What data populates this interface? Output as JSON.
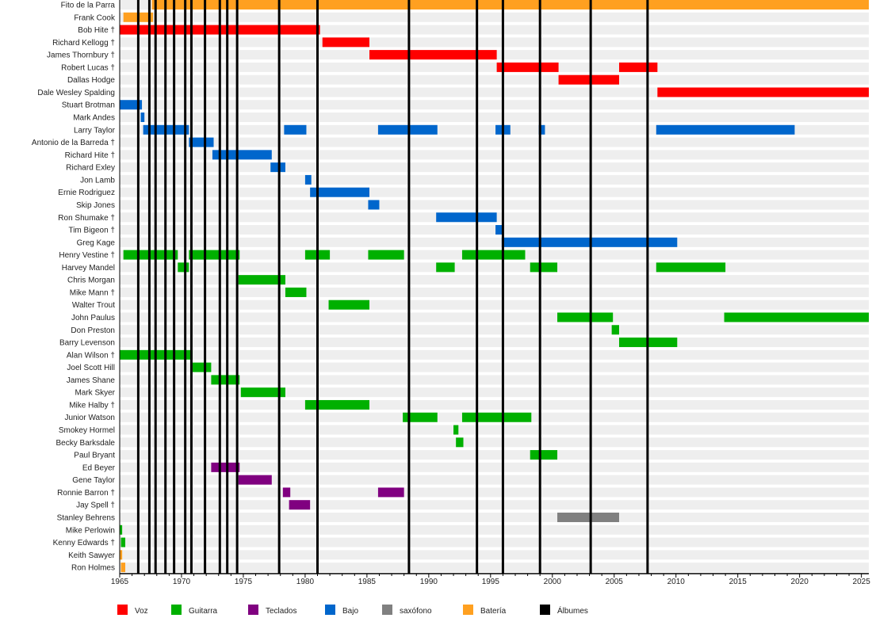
{
  "chart_data": {
    "type": "timeline",
    "title": "",
    "xlim": [
      1965,
      2025.6
    ],
    "x_ticks": [
      1965,
      1970,
      1975,
      1980,
      1985,
      1990,
      1995,
      2000,
      2005,
      2010,
      2015,
      2020,
      2025
    ],
    "roles": [
      {
        "key": "voz",
        "label": "Voz",
        "color": "#ff0000"
      },
      {
        "key": "guitarra",
        "label": "Guitarra",
        "color": "#00b000"
      },
      {
        "key": "teclados",
        "label": "Teclados",
        "color": "#800080"
      },
      {
        "key": "bajo",
        "label": "Bajo",
        "color": "#0066cc"
      },
      {
        "key": "saxofono",
        "label": "saxófono",
        "color": "#808080"
      },
      {
        "key": "bateria",
        "label": "Batería",
        "color": "#ffa020"
      },
      {
        "key": "albumes",
        "label": "Álbumes",
        "color": "#000000"
      }
    ],
    "albums": [
      1966.5,
      1967.4,
      1967.9,
      1968.7,
      1969.4,
      1970.3,
      1970.8,
      1971.9,
      1973.1,
      1973.7,
      1974.5,
      1977.9,
      1981.0,
      1988.4,
      1993.9,
      1996.0,
      1999.0,
      2003.1,
      2007.7
    ],
    "members": [
      {
        "name": "Fito de la Parra",
        "spans": [
          [
            "bateria",
            1967.6,
            2025.6
          ]
        ]
      },
      {
        "name": "Frank Cook",
        "spans": [
          [
            "bateria",
            1965.3,
            1967.7
          ]
        ]
      },
      {
        "name": "Bob Hite †",
        "spans": [
          [
            "voz",
            1965,
            1981.2
          ]
        ]
      },
      {
        "name": "Richard Kellogg †",
        "spans": [
          [
            "voz",
            1981.4,
            1985.2
          ]
        ]
      },
      {
        "name": "James Thornbury †",
        "spans": [
          [
            "voz",
            1985.2,
            1995.5
          ]
        ]
      },
      {
        "name": "Robert Lucas †",
        "spans": [
          [
            "voz",
            1995.5,
            2000.5
          ],
          [
            "voz",
            2005.4,
            2008.5
          ]
        ]
      },
      {
        "name": "Dallas Hodge",
        "spans": [
          [
            "voz",
            2000.5,
            2005.4
          ]
        ]
      },
      {
        "name": "Dale Wesley Spalding",
        "spans": [
          [
            "voz",
            2008.5,
            2025.6
          ]
        ]
      },
      {
        "name": "Stuart Brotman",
        "spans": [
          [
            "bajo",
            1965,
            1966.8
          ]
        ]
      },
      {
        "name": "Mark Andes",
        "spans": [
          [
            "bajo",
            1966.7,
            1967.0
          ]
        ]
      },
      {
        "name": "Larry Taylor",
        "spans": [
          [
            "bajo",
            1966.9,
            1970.6
          ],
          [
            "bajo",
            1978.3,
            1980.1
          ],
          [
            "bajo",
            1985.9,
            1990.7
          ],
          [
            "bajo",
            1995.4,
            1996.6
          ],
          [
            "bajo",
            1998.9,
            1999.4
          ],
          [
            "bajo",
            2008.4,
            2019.6
          ]
        ]
      },
      {
        "name": "Antonio de la Barreda †",
        "spans": [
          [
            "bajo",
            1970.6,
            1972.6
          ]
        ]
      },
      {
        "name": "Richard Hite †",
        "spans": [
          [
            "bajo",
            1972.5,
            1977.3
          ]
        ]
      },
      {
        "name": "Richard Exley",
        "spans": [
          [
            "bajo",
            1977.2,
            1978.4
          ]
        ]
      },
      {
        "name": "Jon Lamb",
        "spans": [
          [
            "bajo",
            1980.0,
            1980.5
          ]
        ]
      },
      {
        "name": "Ernie Rodriguez",
        "spans": [
          [
            "bajo",
            1980.4,
            1985.2
          ]
        ]
      },
      {
        "name": "Skip Jones",
        "spans": [
          [
            "bajo",
            1985.1,
            1986.0
          ]
        ]
      },
      {
        "name": "Ron Shumake †",
        "spans": [
          [
            "bajo",
            1990.6,
            1995.5
          ]
        ]
      },
      {
        "name": "Tim Bigeon †",
        "spans": [
          [
            "bajo",
            1995.4,
            1996.0
          ]
        ]
      },
      {
        "name": "Greg Kage",
        "spans": [
          [
            "bajo",
            1995.9,
            2010.1
          ]
        ]
      },
      {
        "name": "Henry Vestine †",
        "spans": [
          [
            "guitarra",
            1965.3,
            1969.7
          ],
          [
            "guitarra",
            1970.6,
            1974.7
          ],
          [
            "guitarra",
            1980.0,
            1982.0
          ],
          [
            "guitarra",
            1985.1,
            1988.0
          ],
          [
            "guitarra",
            1992.7,
            1997.8
          ]
        ]
      },
      {
        "name": "Harvey Mandel",
        "spans": [
          [
            "guitarra",
            1969.7,
            1970.6
          ],
          [
            "guitarra",
            1990.6,
            1992.1
          ],
          [
            "guitarra",
            1998.2,
            2000.4
          ],
          [
            "guitarra",
            2008.4,
            2014.0
          ]
        ]
      },
      {
        "name": "Chris Morgan",
        "spans": [
          [
            "guitarra",
            1974.6,
            1978.4
          ]
        ]
      },
      {
        "name": "Mike Mann †",
        "spans": [
          [
            "guitarra",
            1978.4,
            1980.1
          ]
        ]
      },
      {
        "name": "Walter Trout",
        "spans": [
          [
            "guitarra",
            1981.9,
            1985.2
          ]
        ]
      },
      {
        "name": "John Paulus",
        "spans": [
          [
            "guitarra",
            2000.4,
            2004.9
          ],
          [
            "guitarra",
            2013.9,
            2025.6
          ]
        ]
      },
      {
        "name": "Don Preston",
        "spans": [
          [
            "guitarra",
            2004.8,
            2005.4
          ]
        ]
      },
      {
        "name": "Barry Levenson",
        "spans": [
          [
            "guitarra",
            2005.4,
            2010.1
          ]
        ]
      },
      {
        "name": "Alan Wilson †",
        "spans": [
          [
            "guitarra",
            1965,
            1970.9
          ]
        ]
      },
      {
        "name": "Joel Scott Hill",
        "spans": [
          [
            "guitarra",
            1970.9,
            1972.4
          ]
        ]
      },
      {
        "name": "James Shane",
        "spans": [
          [
            "guitarra",
            1972.4,
            1974.7
          ]
        ]
      },
      {
        "name": "Mark Skyer",
        "spans": [
          [
            "guitarra",
            1974.8,
            1978.4
          ]
        ]
      },
      {
        "name": "Mike Halby †",
        "spans": [
          [
            "guitarra",
            1980.0,
            1985.2
          ]
        ]
      },
      {
        "name": "Junior Watson",
        "spans": [
          [
            "guitarra",
            1987.9,
            1990.7
          ],
          [
            "guitarra",
            1992.7,
            1998.3
          ]
        ]
      },
      {
        "name": "Smokey Hormel",
        "spans": [
          [
            "guitarra",
            1992.0,
            1992.4
          ]
        ]
      },
      {
        "name": "Becky Barksdale",
        "spans": [
          [
            "guitarra",
            1992.2,
            1992.8
          ]
        ]
      },
      {
        "name": "Paul Bryant",
        "spans": [
          [
            "guitarra",
            1998.2,
            2000.4
          ]
        ]
      },
      {
        "name": "Ed Beyer",
        "spans": [
          [
            "teclados",
            1972.4,
            1974.7
          ]
        ]
      },
      {
        "name": "Gene Taylor",
        "spans": [
          [
            "teclados",
            1974.6,
            1977.3
          ]
        ]
      },
      {
        "name": "Ronnie Barron †",
        "spans": [
          [
            "teclados",
            1978.2,
            1978.8
          ],
          [
            "teclados",
            1985.9,
            1988.0
          ]
        ]
      },
      {
        "name": "Jay Spell †",
        "spans": [
          [
            "teclados",
            1978.7,
            1980.4
          ]
        ]
      },
      {
        "name": "Stanley Behrens",
        "spans": [
          [
            "saxofono",
            2000.4,
            2005.4
          ]
        ]
      },
      {
        "name": "Mike Perlowin",
        "spans": [
          [
            "guitarra",
            1965,
            1965.2
          ]
        ]
      },
      {
        "name": "Kenny Edwards †",
        "spans": [
          [
            "guitarra",
            1965.1,
            1965.45
          ]
        ]
      },
      {
        "name": "Keith Sawyer",
        "spans": [
          [
            "bateria",
            1965,
            1965.2
          ]
        ]
      },
      {
        "name": "Ron Holmes",
        "spans": [
          [
            "bateria",
            1965.1,
            1965.45
          ]
        ]
      }
    ]
  }
}
